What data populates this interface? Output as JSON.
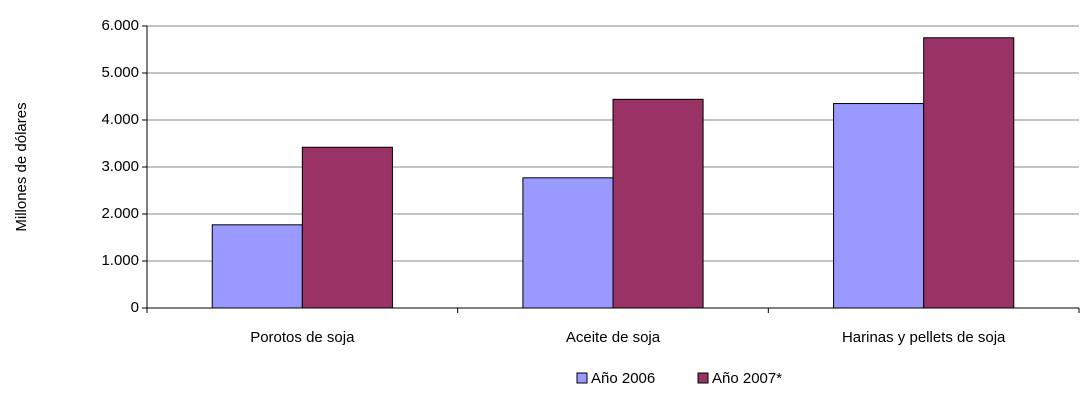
{
  "chart_data": {
    "type": "bar",
    "y_axis_label": "Millones de dólares",
    "categories": [
      "Porotos de soja",
      "Aceite de soja",
      "Harinas y pellets de soja"
    ],
    "series": [
      {
        "name": "Año 2006",
        "color": "#9999ff",
        "values": [
          1770,
          2770,
          4350
        ]
      },
      {
        "name": "Año 2007*",
        "color": "#993366",
        "values": [
          3420,
          4440,
          5750
        ]
      }
    ],
    "ylim": [
      0,
      6000
    ],
    "yticks": [
      0,
      {
        "value": 1000,
        "label": "1.000"
      },
      {
        "value": 2000,
        "label": "2.000"
      },
      {
        "value": 3000,
        "label": "3.000"
      },
      {
        "value": 4000,
        "label": "4.000"
      },
      {
        "value": 5000,
        "label": "5.000"
      },
      {
        "value": 6000,
        "label": "6.000"
      }
    ],
    "grid": true,
    "legend": "bottom"
  }
}
